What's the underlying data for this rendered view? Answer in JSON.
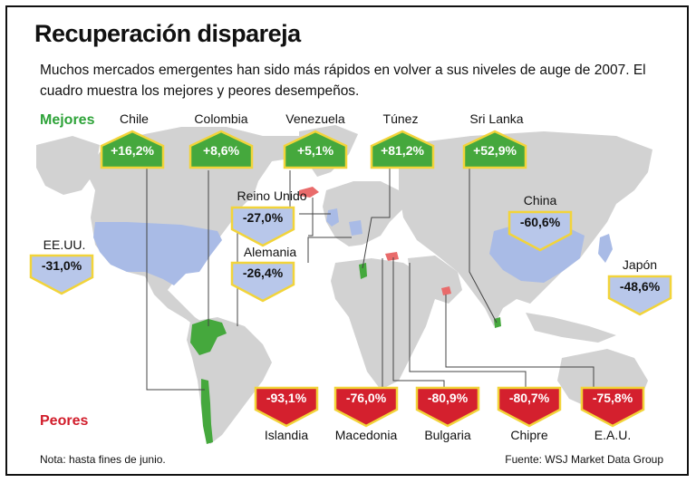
{
  "title": "Recuperación dispareja",
  "subtitle": "Muchos mercados emergentes han sido más rápidos en volver a sus niveles de auge de 2007. El cuadro muestra los mejores y peores desempeños.",
  "legend": {
    "best_label": "Mejores",
    "worst_label": "Peores"
  },
  "best": [
    {
      "country": "Chile",
      "value": "+16,2%"
    },
    {
      "country": "Colombia",
      "value": "+8,6%"
    },
    {
      "country": "Venezuela",
      "value": "+5,1%"
    },
    {
      "country": "Túnez",
      "value": "+81,2%"
    },
    {
      "country": "Sri Lanka",
      "value": "+52,9%"
    }
  ],
  "middle": [
    {
      "country": "EE.UU.",
      "value": "-31,0%"
    },
    {
      "country": "Reino Unido",
      "value": "-27,0%"
    },
    {
      "country": "Alemania",
      "value": "-26,4%"
    },
    {
      "country": "China",
      "value": "-60,6%"
    },
    {
      "country": "Japón",
      "value": "-48,6%"
    }
  ],
  "worst": [
    {
      "country": "Islandia",
      "value": "-93,1%"
    },
    {
      "country": "Macedonia",
      "value": "-76,0%"
    },
    {
      "country": "Bulgaria",
      "value": "-80,9%"
    },
    {
      "country": "Chipre",
      "value": "-80,7%"
    },
    {
      "country": "E.A.U.",
      "value": "-75,8%"
    }
  ],
  "colors": {
    "best": "#45a83d",
    "worst": "#d4202e",
    "middle": "#b8c7ea",
    "badge_border": "#f2d43a",
    "land": "#d2d2d2",
    "us_china": "#a9bbe6"
  },
  "footnote": "Nota: hasta fines de junio.",
  "source": "Fuente: WSJ Market Data Group"
}
